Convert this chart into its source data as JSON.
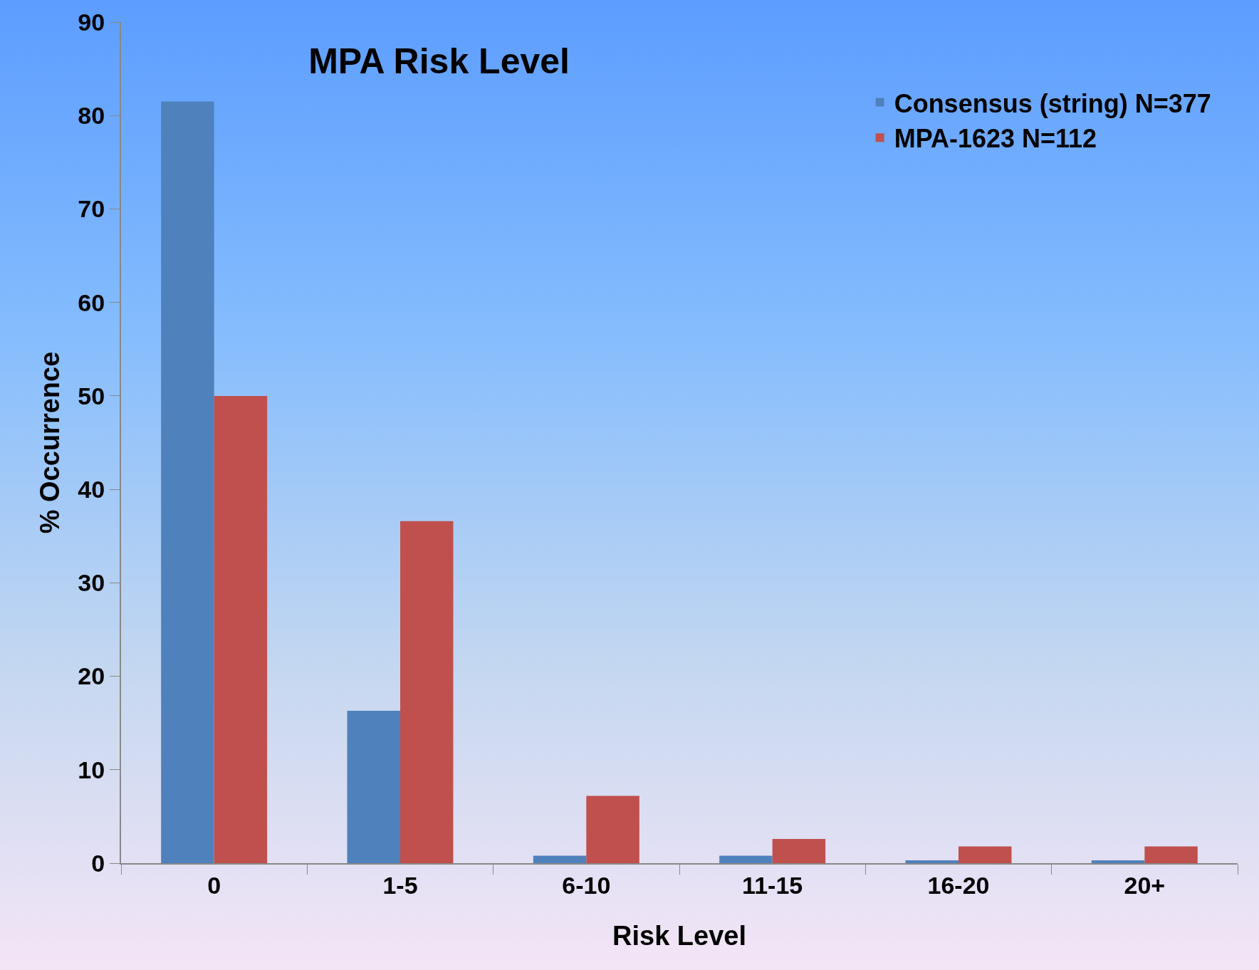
{
  "chart_data": {
    "type": "bar",
    "title": "MPA Risk Level",
    "xlabel": "Risk Level",
    "ylabel": "% Occurrence",
    "categories": [
      "0",
      "1-5",
      "6-10",
      "11-15",
      "16-20",
      "20+"
    ],
    "series": [
      {
        "name": "Consensus (string) N=377",
        "color": "#4f81bd",
        "values": [
          81.5,
          16.3,
          0.8,
          0.8,
          0.3,
          0.3
        ]
      },
      {
        "name": "MPA-1623 N=112",
        "color": "#c0504d",
        "values": [
          50,
          36.6,
          7.2,
          2.6,
          1.8,
          1.8
        ]
      }
    ],
    "ylim": [
      0,
      90
    ],
    "yticks": [
      0,
      10,
      20,
      30,
      40,
      50,
      60,
      70,
      80,
      90
    ],
    "grid": false,
    "legend": "top right"
  }
}
